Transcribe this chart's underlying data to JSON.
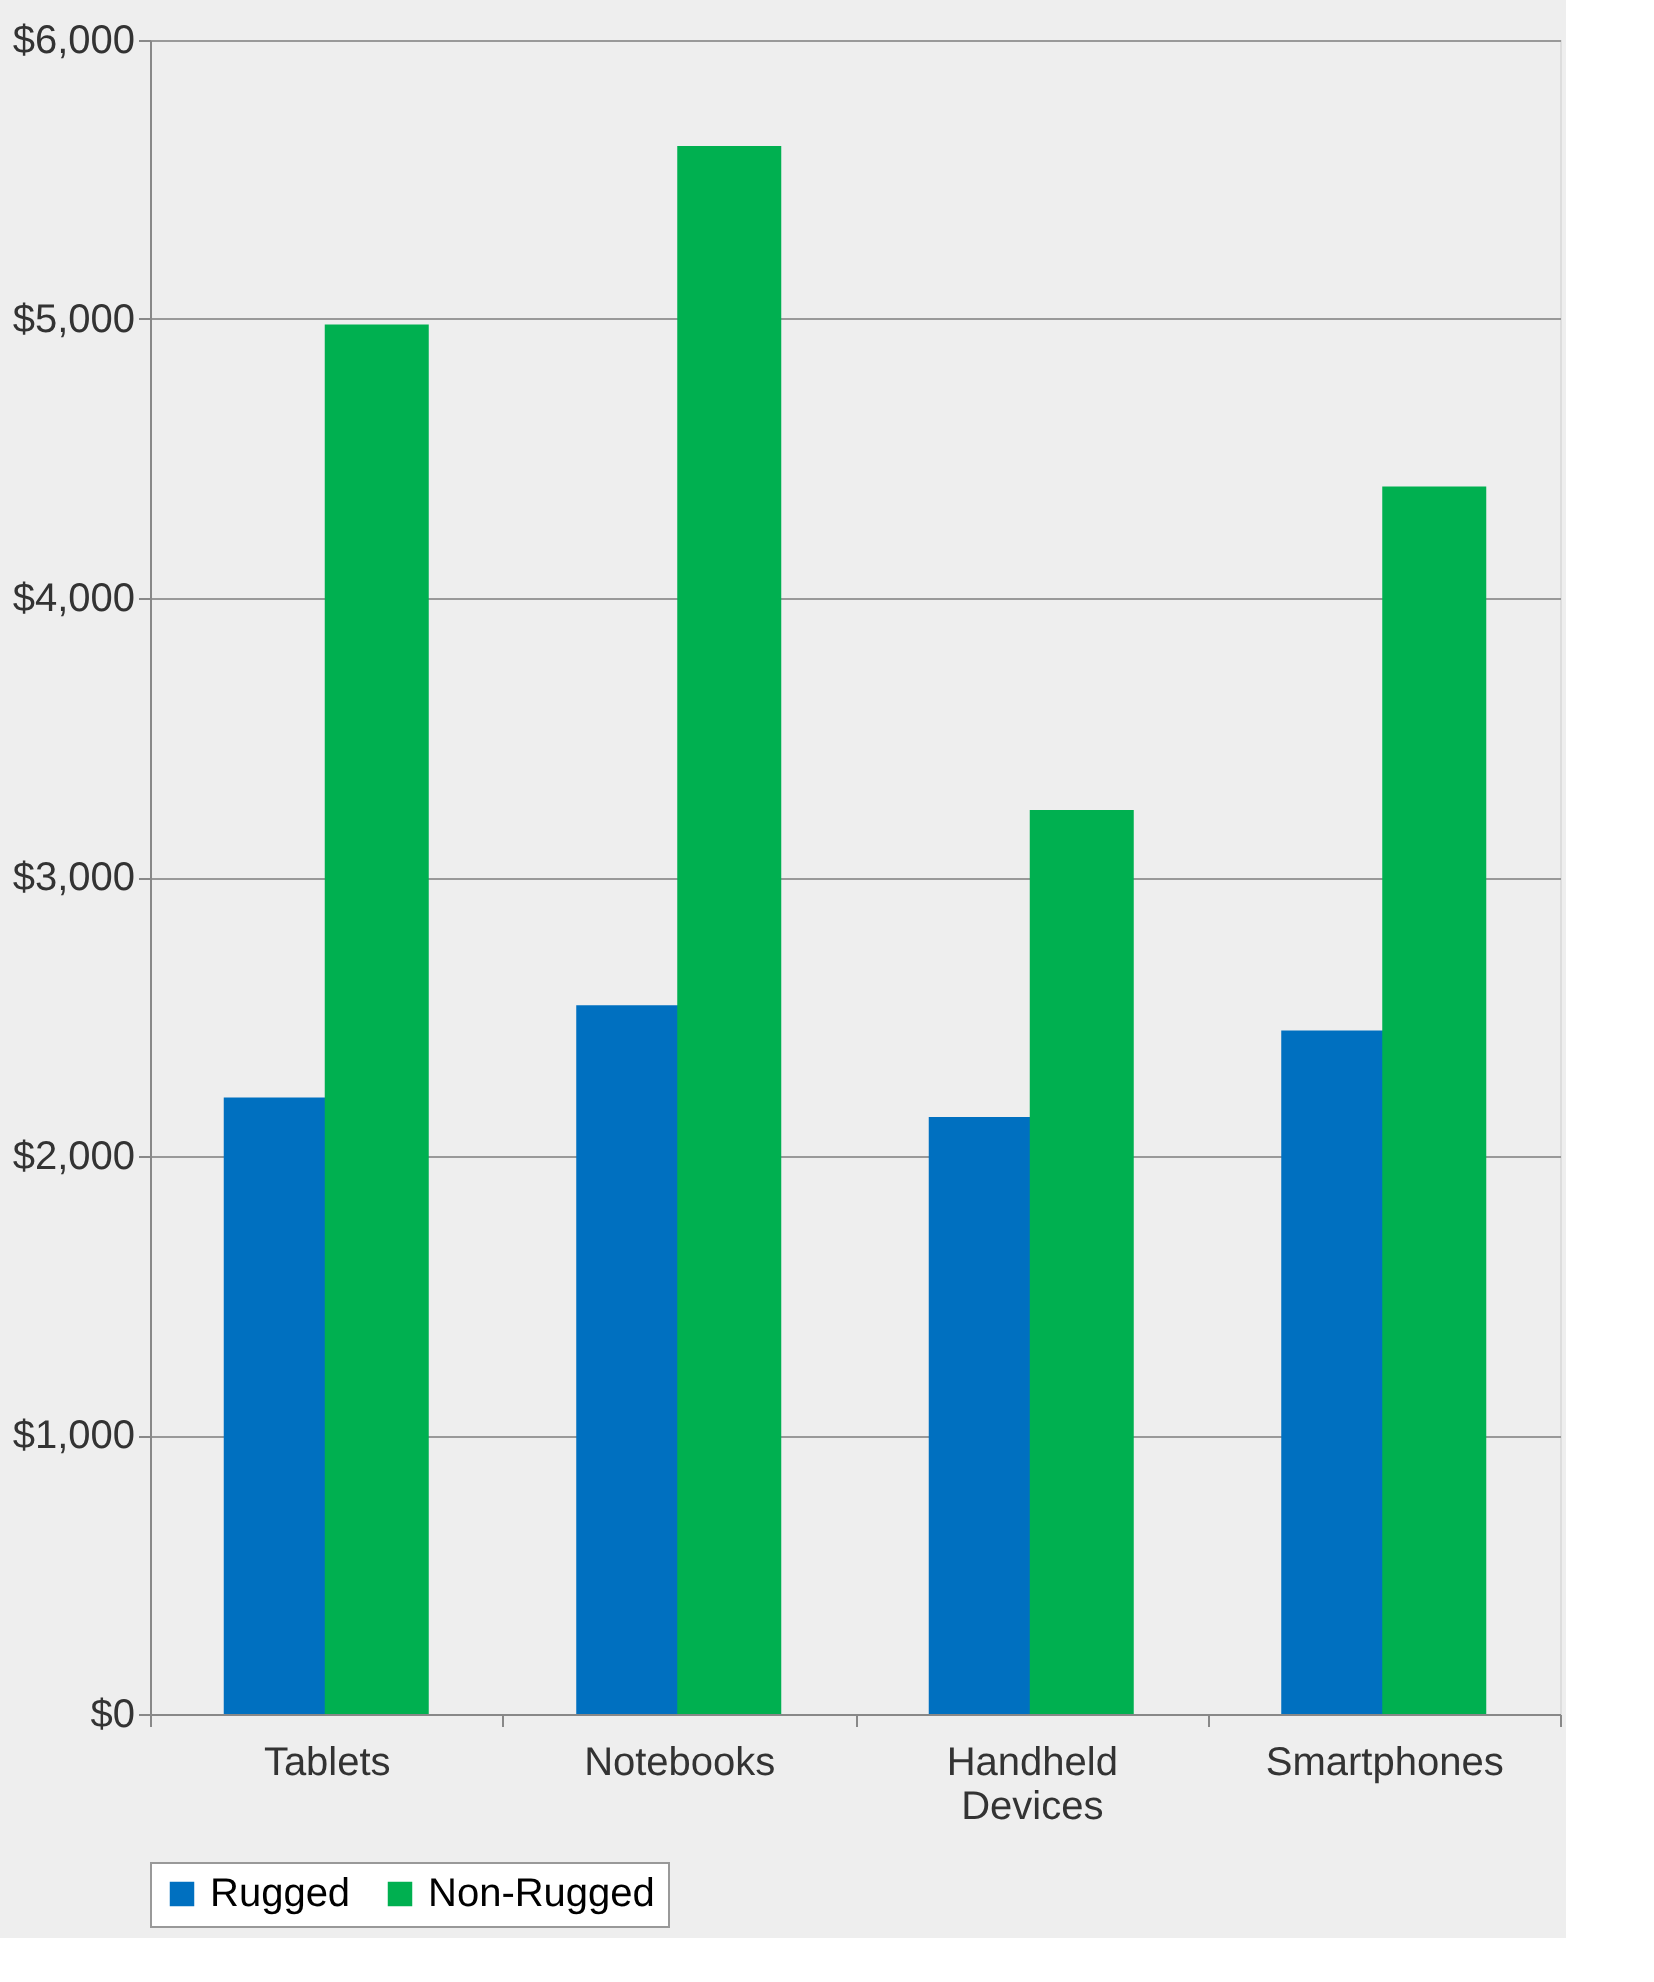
{
  "chart_data": {
    "type": "bar",
    "categories": [
      "Tablets",
      "Notebooks",
      "Handheld Devices",
      "Smartphones"
    ],
    "series": [
      {
        "name": "Rugged",
        "color": "#0070c0",
        "values": [
          2210,
          2540,
          2140,
          2450
        ]
      },
      {
        "name": "Non-Rugged",
        "color": "#00b050",
        "values": [
          4980,
          5620,
          3240,
          4400
        ]
      }
    ],
    "ylim": [
      0,
      6000
    ],
    "yticks": [
      {
        "value": 0,
        "label": "$0"
      },
      {
        "value": 1000,
        "label": "$1,000"
      },
      {
        "value": 2000,
        "label": "$2,000"
      },
      {
        "value": 3000,
        "label": "$3,000"
      },
      {
        "value": 4000,
        "label": "$4,000"
      },
      {
        "value": 5000,
        "label": "$5,000"
      },
      {
        "value": 6000,
        "label": "$6,000"
      }
    ],
    "grid": "y",
    "legend": "bottom"
  }
}
